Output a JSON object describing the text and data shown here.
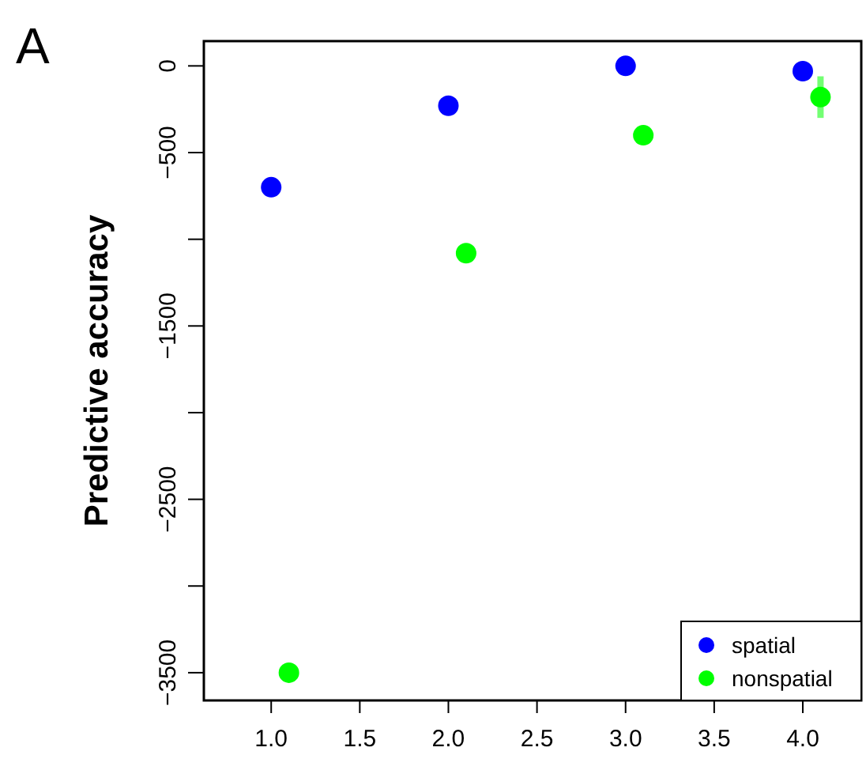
{
  "chart_data": {
    "type": "scatter",
    "title": "A",
    "ylabel": "Predictive accuracy",
    "xlim": [
      0.62,
      4.33
    ],
    "ylim": [
      -3660,
      143
    ],
    "xticks": [
      {
        "value": 1,
        "label": "1.0"
      },
      {
        "value": 1.5,
        "label": "1.5"
      },
      {
        "value": 2,
        "label": "2.0"
      },
      {
        "value": 2.5,
        "label": "2.5"
      },
      {
        "value": 3,
        "label": "3.0"
      },
      {
        "value": 3.5,
        "label": "3.5"
      },
      {
        "value": 4,
        "label": "4.0"
      }
    ],
    "yticks": [
      0,
      -500,
      {
        "value": -1000,
        "label": null
      },
      -1500,
      {
        "value": -2000,
        "label": null
      },
      -2500,
      {
        "value": -3000,
        "label": null
      },
      -3500
    ],
    "series": [
      {
        "name": "spatial",
        "color": "#0000ff",
        "x": [
          1,
          2,
          3,
          4
        ],
        "values": [
          -700,
          -230,
          0,
          -30
        ]
      },
      {
        "name": "nonspatial",
        "color": "#00ff00",
        "x": [
          1.1,
          2.1,
          3.1,
          4.1
        ],
        "values": [
          -3500,
          -1080,
          -400,
          -180
        ],
        "errors": [
          null,
          null,
          null,
          [
            -300,
            -60
          ]
        ]
      }
    ],
    "marker": "circle",
    "grid": false,
    "legend": "bottom right"
  }
}
